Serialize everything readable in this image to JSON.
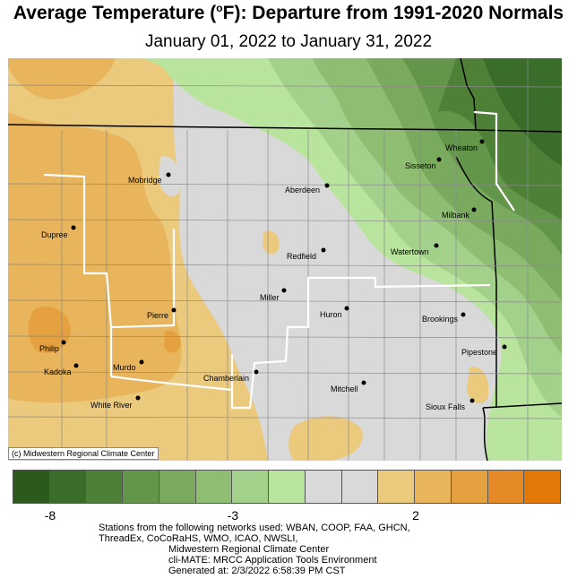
{
  "title_main": "Average Temperature (",
  "title_degree": "o",
  "title_rest": "F): Departure from 1991-2020 Normals",
  "subtitle": "January 01, 2022 to January 31, 2022",
  "credit": "(c) Midwestern Regional Climate Center",
  "legend": {
    "colors": [
      "#2b5a1c",
      "#3a6d2a",
      "#4e8038",
      "#63954a",
      "#7aaa5e",
      "#8fbd72",
      "#a3d08a",
      "#b8e49e",
      "#d9d9d9",
      "#d9d9d9",
      "#ebc97d",
      "#e8b55c",
      "#e5a13f",
      "#e58a26",
      "#e27805"
    ],
    "labels": [
      "-8",
      "-3",
      "2"
    ]
  },
  "cities": [
    {
      "name": "Mobridge"
    },
    {
      "name": "Aberdeen"
    },
    {
      "name": "Sisseton"
    },
    {
      "name": "Wheaton"
    },
    {
      "name": "Dupree"
    },
    {
      "name": "Milbank"
    },
    {
      "name": "Watertown"
    },
    {
      "name": "Redfield"
    },
    {
      "name": "Miller"
    },
    {
      "name": "Pierre"
    },
    {
      "name": "Huron"
    },
    {
      "name": "Brookings"
    },
    {
      "name": "Philip"
    },
    {
      "name": "Kadoka"
    },
    {
      "name": "Murdo"
    },
    {
      "name": "Pipestone"
    },
    {
      "name": "Chamberlain"
    },
    {
      "name": "Mitchell"
    },
    {
      "name": "White River"
    },
    {
      "name": "Sioux Falls"
    }
  ],
  "footer": [
    "Stations from the following networks used: WBAN, COOP, FAA, GHCN,",
    "ThreadEx, CoCoRaHS, WMO, ICAO, NWSLI,",
    "Midwestern Regional Climate Center",
    "cli-MATE: MRCC Application Tools Environment",
    "Generated at: 2/3/2022 6:58:39 PM CST"
  ]
}
